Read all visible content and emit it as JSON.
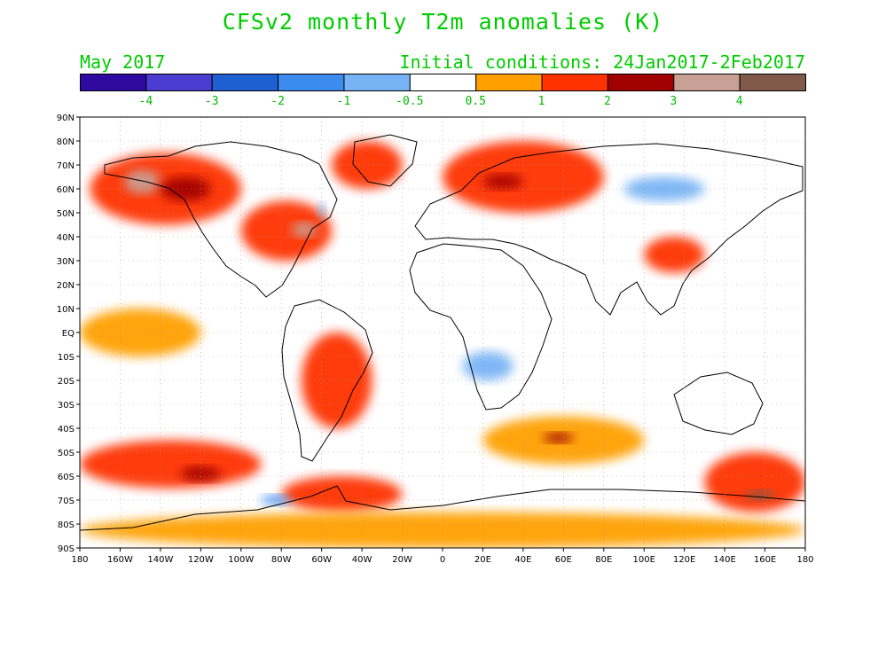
{
  "header": {
    "title": "CFSv2 monthly T2m anomalies (K)",
    "target_month": "May 2017",
    "initial_conditions": "Initial conditions: 24Jan2017-2Feb2017"
  },
  "colorbar": {
    "bins": [
      {
        "color": "#2e0aa0"
      },
      {
        "color": "#4b3cd2"
      },
      {
        "color": "#1e5fd2"
      },
      {
        "color": "#3c8cf0"
      },
      {
        "color": "#78b4f5"
      },
      {
        "color": "#ffffff"
      },
      {
        "color": "#ffa000"
      },
      {
        "color": "#ff3200"
      },
      {
        "color": "#a00000"
      },
      {
        "color": "#c8a096"
      },
      {
        "color": "#825a4b"
      }
    ],
    "labels": [
      "-4",
      "-3",
      "-2",
      "-1",
      "-0.5",
      "0.5",
      "1",
      "2",
      "3",
      "4"
    ]
  },
  "axes": {
    "lat_labels": [
      "90N",
      "80N",
      "70N",
      "60N",
      "50N",
      "40N",
      "30N",
      "20N",
      "10N",
      "EQ",
      "10S",
      "20S",
      "30S",
      "40S",
      "50S",
      "60S",
      "70S",
      "80S",
      "90S"
    ],
    "lon_labels": [
      "180",
      "160W",
      "140W",
      "120W",
      "100W",
      "80W",
      "60W",
      "40W",
      "20W",
      "0",
      "20E",
      "40E",
      "60E",
      "80E",
      "100E",
      "120E",
      "140E",
      "160E",
      "180"
    ],
    "grid": "dotted every 10 degrees"
  },
  "chart_data": {
    "type": "heatmap",
    "variable": "2m temperature anomaly (K)",
    "lon_range": [
      -180,
      180
    ],
    "lat_range": [
      -90,
      90
    ],
    "anomaly_regions": [
      {
        "lon": [
          -175,
          -100
        ],
        "lat": [
          45,
          75
        ],
        "value": 1.5
      },
      {
        "lon": [
          -158,
          -140
        ],
        "lat": [
          58,
          68
        ],
        "value": 3.5
      },
      {
        "lon": [
          -140,
          -115
        ],
        "lat": [
          55,
          65
        ],
        "value": 2.5
      },
      {
        "lon": [
          -100,
          -55
        ],
        "lat": [
          30,
          55
        ],
        "value": 1.5
      },
      {
        "lon": [
          -75,
          -62
        ],
        "lat": [
          40,
          46
        ],
        "value": 3.5
      },
      {
        "lon": [
          -55,
          -20
        ],
        "lat": [
          60,
          80
        ],
        "value": 1.5
      },
      {
        "lon": [
          0,
          80
        ],
        "lat": [
          50,
          80
        ],
        "value": 1.5
      },
      {
        "lon": [
          20,
          40
        ],
        "lat": [
          60,
          66
        ],
        "value": 2.5
      },
      {
        "lon": [
          -62,
          -58
        ],
        "lat": [
          48,
          54
        ],
        "value": -1
      },
      {
        "lon": [
          -180,
          -120
        ],
        "lat": [
          -10,
          10
        ],
        "value": 0.7
      },
      {
        "lon": [
          -70,
          -35
        ],
        "lat": [
          -40,
          0
        ],
        "value": 1.0
      },
      {
        "lon": [
          -180,
          -90
        ],
        "lat": [
          -65,
          -45
        ],
        "value": 1.5
      },
      {
        "lon": [
          -130,
          -110
        ],
        "lat": [
          -62,
          -56
        ],
        "value": 2.5
      },
      {
        "lon": [
          -80,
          -20
        ],
        "lat": [
          -75,
          -60
        ],
        "value": 1.5
      },
      {
        "lon": [
          -90,
          -75
        ],
        "lat": [
          -72,
          -68
        ],
        "value": -1.5
      },
      {
        "lon": [
          10,
          35
        ],
        "lat": [
          -20,
          -8
        ],
        "value": -0.7
      },
      {
        "lon": [
          20,
          100
        ],
        "lat": [
          -55,
          -35
        ],
        "value": 0.8
      },
      {
        "lon": [
          50,
          65
        ],
        "lat": [
          -46,
          -42
        ],
        "value": 2.5
      },
      {
        "lon": [
          130,
          180
        ],
        "lat": [
          -75,
          -50
        ],
        "value": 1.5
      },
      {
        "lon": [
          150,
          165
        ],
        "lat": [
          -70,
          -66
        ],
        "value": 4.0
      },
      {
        "lon": [
          -180,
          180
        ],
        "lat": [
          -90,
          -75
        ],
        "value": 0.7
      },
      {
        "lon": [
          100,
          130
        ],
        "lat": [
          25,
          40
        ],
        "value": 1.0
      },
      {
        "lon": [
          90,
          130
        ],
        "lat": [
          55,
          65
        ],
        "value": -0.7
      }
    ]
  }
}
